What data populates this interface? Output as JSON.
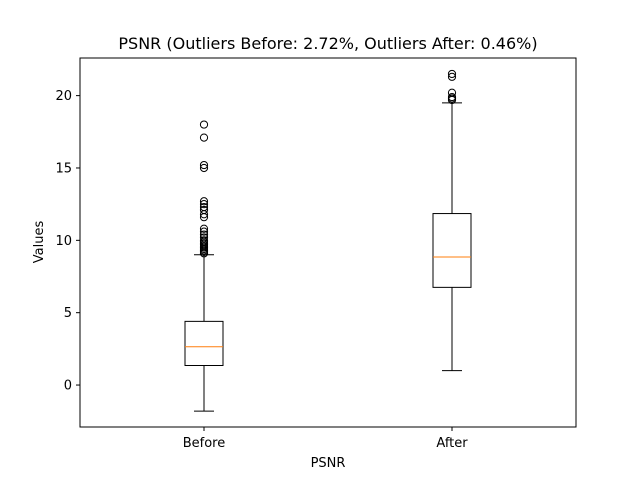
{
  "chart_data": {
    "type": "box",
    "title": "PSNR (Outliers Before: 2.72%, Outliers After: 0.46%)",
    "xlabel": "PSNR",
    "ylabel": "Values",
    "categories": [
      "Before",
      "After"
    ],
    "ylim": [
      -2.9,
      22.6
    ],
    "yticks": [
      0,
      5,
      10,
      15,
      20
    ],
    "grid": false,
    "colors": {
      "box": "#000000",
      "median": "#ff7f0e",
      "outlier": "#000000"
    },
    "series": [
      {
        "category": "Before",
        "whisker_low": -1.8,
        "q1": 1.35,
        "median": 2.65,
        "q3": 4.4,
        "whisker_high": 9.0,
        "outliers": [
          9.1,
          9.2,
          9.3,
          9.4,
          9.5,
          9.6,
          9.7,
          9.8,
          9.9,
          10.0,
          10.2,
          10.4,
          10.6,
          10.8,
          11.6,
          11.8,
          12.1,
          12.3,
          12.5,
          12.7,
          15.0,
          15.2,
          17.1,
          18.0
        ]
      },
      {
        "category": "After",
        "whisker_low": 1.0,
        "q1": 6.75,
        "median": 8.85,
        "q3": 11.85,
        "whisker_high": 19.5,
        "outliers": [
          19.7,
          19.8,
          19.9,
          20.2,
          21.3,
          21.5
        ]
      }
    ]
  }
}
